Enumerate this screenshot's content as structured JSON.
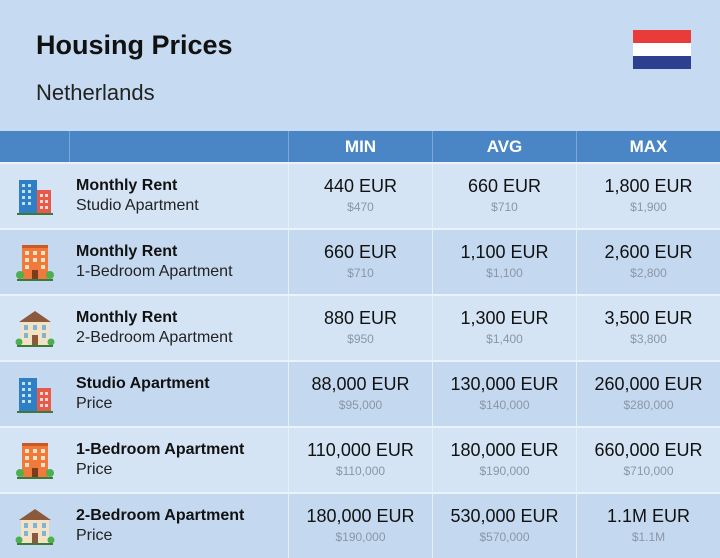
{
  "header": {
    "title": "Housing Prices",
    "subtitle": "Netherlands",
    "flag_colors": [
      "#ea3b3b",
      "#ffffff",
      "#2d3f8f"
    ]
  },
  "columns": [
    "MIN",
    "AVG",
    "MAX"
  ],
  "rows": [
    {
      "icon": "blue-building-icon",
      "label": "Monthly Rent",
      "sublabel": "Studio Apartment",
      "min": "440 EUR",
      "min_usd": "$470",
      "avg": "660 EUR",
      "avg_usd": "$710",
      "max": "1,800 EUR",
      "max_usd": "$1,900"
    },
    {
      "icon": "orange-building-icon",
      "label": "Monthly Rent",
      "sublabel": "1-Bedroom Apartment",
      "min": "660 EUR",
      "min_usd": "$710",
      "avg": "1,100 EUR",
      "avg_usd": "$1,100",
      "max": "2,600 EUR",
      "max_usd": "$2,800"
    },
    {
      "icon": "beige-house-icon",
      "label": "Monthly Rent",
      "sublabel": "2-Bedroom Apartment",
      "min": "880 EUR",
      "min_usd": "$950",
      "avg": "1,300 EUR",
      "avg_usd": "$1,400",
      "max": "3,500 EUR",
      "max_usd": "$3,800"
    },
    {
      "icon": "blue-building-icon",
      "label": "Studio Apartment",
      "sublabel": "Price",
      "min": "88,000 EUR",
      "min_usd": "$95,000",
      "avg": "130,000 EUR",
      "avg_usd": "$140,000",
      "max": "260,000 EUR",
      "max_usd": "$280,000"
    },
    {
      "icon": "orange-building-icon",
      "label": "1-Bedroom Apartment",
      "sublabel": "Price",
      "min": "110,000 EUR",
      "min_usd": "$110,000",
      "avg": "180,000 EUR",
      "avg_usd": "$190,000",
      "max": "660,000 EUR",
      "max_usd": "$710,000"
    },
    {
      "icon": "beige-house-icon",
      "label": "2-Bedroom Apartment",
      "sublabel": "Price",
      "min": "180,000 EUR",
      "min_usd": "$190,000",
      "avg": "530,000 EUR",
      "avg_usd": "$570,000",
      "max": "1.1M EUR",
      "max_usd": "$1.1M"
    }
  ]
}
